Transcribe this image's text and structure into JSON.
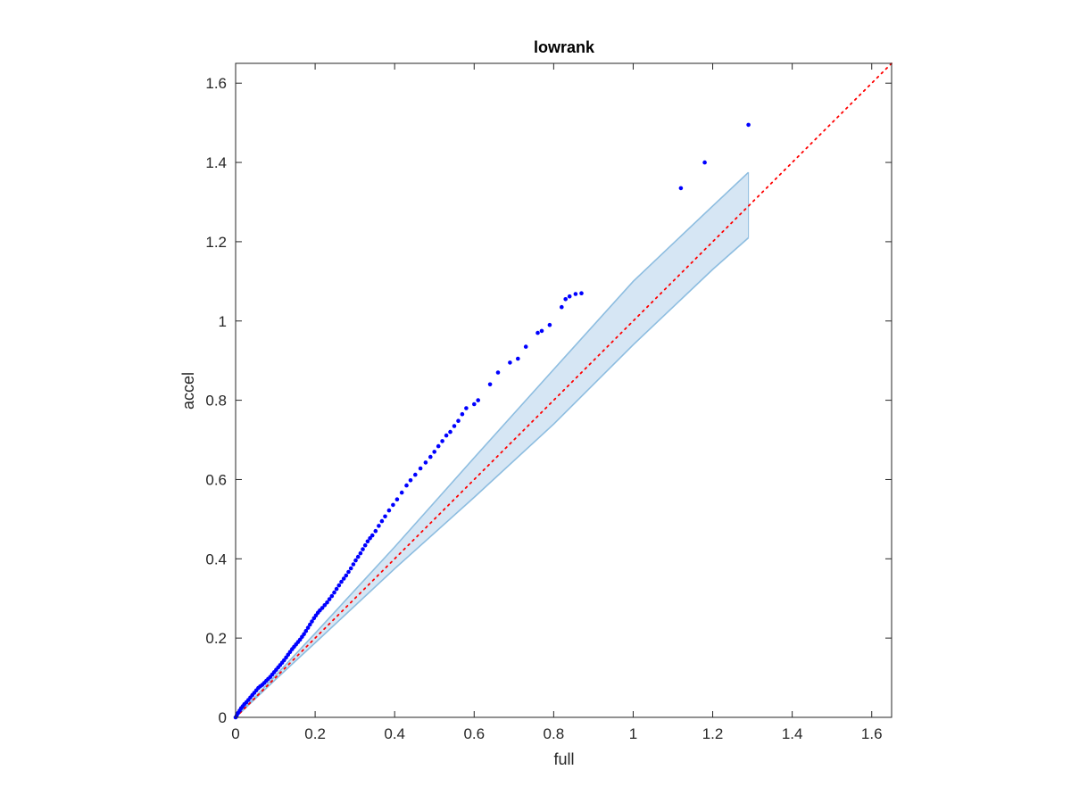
{
  "chart_data": {
    "type": "scatter",
    "title": "lowrank",
    "xlabel": "full",
    "ylabel": "accel",
    "xlim": [
      0,
      1.65
    ],
    "ylim": [
      0,
      1.65
    ],
    "xticks": [
      0,
      0.2,
      0.4,
      0.6,
      0.8,
      1,
      1.2,
      1.4,
      1.6
    ],
    "xtick_labels": [
      "0",
      "0.2",
      "0.4",
      "0.6",
      "0.8",
      "1",
      "1.2",
      "1.4",
      "1.6"
    ],
    "yticks": [
      0,
      0.2,
      0.4,
      0.6,
      0.8,
      1,
      1.2,
      1.4,
      1.6
    ],
    "ytick_labels": [
      "0",
      "0.2",
      "0.4",
      "0.6",
      "0.8",
      "1",
      "1.2",
      "1.4",
      "1.6"
    ],
    "grid": false,
    "colors": {
      "points": "#0000ff",
      "reference_line": "#ff0000",
      "band_fill": "#d6e6f4",
      "band_edge": "#8dbde0",
      "axes": "#262626"
    },
    "reference_line": {
      "x": [
        0,
        1.65
      ],
      "y": [
        0,
        1.65
      ],
      "style": "dotted"
    },
    "confidence_band": {
      "x": [
        0,
        0.1,
        0.2,
        0.4,
        0.6,
        0.8,
        1.0,
        1.2,
        1.29
      ],
      "upper": [
        0,
        0.105,
        0.212,
        0.43,
        0.655,
        0.878,
        1.1,
        1.29,
        1.375
      ],
      "lower": [
        0,
        0.095,
        0.188,
        0.375,
        0.555,
        0.74,
        0.94,
        1.13,
        1.21
      ]
    },
    "series": [
      {
        "points": [
          [
            0,
            0
          ],
          [
            0.003,
            0.005
          ],
          [
            0.006,
            0.011
          ],
          [
            0.01,
            0.017
          ],
          [
            0.014,
            0.023
          ],
          [
            0.018,
            0.028
          ],
          [
            0.022,
            0.033
          ],
          [
            0.027,
            0.038
          ],
          [
            0.032,
            0.044
          ],
          [
            0.037,
            0.05
          ],
          [
            0.042,
            0.056
          ],
          [
            0.047,
            0.062
          ],
          [
            0.052,
            0.068
          ],
          [
            0.057,
            0.074
          ],
          [
            0.062,
            0.078
          ],
          [
            0.067,
            0.082
          ],
          [
            0.072,
            0.087
          ],
          [
            0.077,
            0.092
          ],
          [
            0.082,
            0.097
          ],
          [
            0.087,
            0.102
          ],
          [
            0.092,
            0.108
          ],
          [
            0.097,
            0.114
          ],
          [
            0.102,
            0.12
          ],
          [
            0.107,
            0.126
          ],
          [
            0.112,
            0.132
          ],
          [
            0.117,
            0.138
          ],
          [
            0.122,
            0.144
          ],
          [
            0.127,
            0.151
          ],
          [
            0.132,
            0.158
          ],
          [
            0.137,
            0.165
          ],
          [
            0.142,
            0.172
          ],
          [
            0.147,
            0.178
          ],
          [
            0.152,
            0.184
          ],
          [
            0.157,
            0.19
          ],
          [
            0.162,
            0.196
          ],
          [
            0.167,
            0.203
          ],
          [
            0.172,
            0.21
          ],
          [
            0.177,
            0.218
          ],
          [
            0.182,
            0.226
          ],
          [
            0.187,
            0.234
          ],
          [
            0.192,
            0.242
          ],
          [
            0.197,
            0.25
          ],
          [
            0.202,
            0.257
          ],
          [
            0.207,
            0.264
          ],
          [
            0.212,
            0.27
          ],
          [
            0.218,
            0.276
          ],
          [
            0.224,
            0.283
          ],
          [
            0.23,
            0.29
          ],
          [
            0.236,
            0.298
          ],
          [
            0.242,
            0.306
          ],
          [
            0.248,
            0.315
          ],
          [
            0.254,
            0.324
          ],
          [
            0.26,
            0.333
          ],
          [
            0.266,
            0.342
          ],
          [
            0.272,
            0.35
          ],
          [
            0.278,
            0.358
          ],
          [
            0.284,
            0.367
          ],
          [
            0.29,
            0.376
          ],
          [
            0.296,
            0.386
          ],
          [
            0.302,
            0.396
          ],
          [
            0.308,
            0.405
          ],
          [
            0.314,
            0.414
          ],
          [
            0.32,
            0.424
          ],
          [
            0.326,
            0.434
          ],
          [
            0.332,
            0.444
          ],
          [
            0.338,
            0.452
          ],
          [
            0.344,
            0.459
          ],
          [
            0.352,
            0.47
          ],
          [
            0.36,
            0.483
          ],
          [
            0.368,
            0.495
          ],
          [
            0.376,
            0.507
          ],
          [
            0.386,
            0.522
          ],
          [
            0.396,
            0.536
          ],
          [
            0.406,
            0.55
          ],
          [
            0.418,
            0.567
          ],
          [
            0.43,
            0.585
          ],
          [
            0.44,
            0.598
          ],
          [
            0.452,
            0.612
          ],
          [
            0.465,
            0.628
          ],
          [
            0.478,
            0.643
          ],
          [
            0.49,
            0.657
          ],
          [
            0.5,
            0.67
          ],
          [
            0.51,
            0.684
          ],
          [
            0.52,
            0.697
          ],
          [
            0.53,
            0.711
          ],
          [
            0.54,
            0.72
          ],
          [
            0.55,
            0.735
          ],
          [
            0.56,
            0.748
          ],
          [
            0.57,
            0.765
          ],
          [
            0.58,
            0.78
          ],
          [
            0.6,
            0.79
          ],
          [
            0.61,
            0.8
          ],
          [
            0.64,
            0.84
          ],
          [
            0.66,
            0.87
          ],
          [
            0.69,
            0.895
          ],
          [
            0.71,
            0.905
          ],
          [
            0.73,
            0.935
          ],
          [
            0.76,
            0.97
          ],
          [
            0.77,
            0.975
          ],
          [
            0.79,
            0.99
          ],
          [
            0.82,
            1.035
          ],
          [
            0.83,
            1.055
          ],
          [
            0.84,
            1.062
          ],
          [
            0.855,
            1.068
          ],
          [
            0.87,
            1.07
          ],
          [
            1.12,
            1.335
          ],
          [
            1.18,
            1.4
          ],
          [
            1.29,
            1.495
          ]
        ]
      }
    ]
  }
}
